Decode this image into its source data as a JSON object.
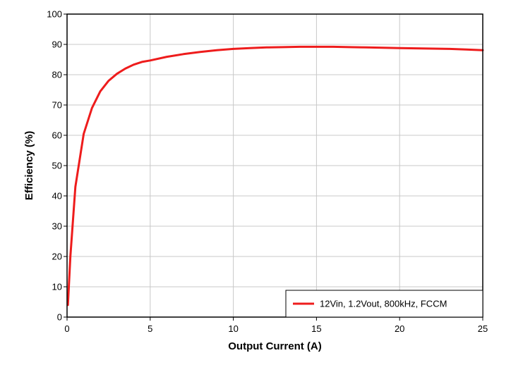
{
  "chart_data": {
    "type": "line",
    "title": "",
    "xlabel": "Output Current (A)",
    "ylabel": "Efficiency (%)",
    "xlim": [
      0,
      25
    ],
    "ylim": [
      0,
      100
    ],
    "xticks": [
      0,
      5,
      10,
      15,
      20,
      25
    ],
    "yticks": [
      0,
      10,
      20,
      30,
      40,
      50,
      60,
      70,
      80,
      90,
      100
    ],
    "xtick_labels": [
      "0",
      "5",
      "10",
      "15",
      "20",
      "25"
    ],
    "ytick_labels": [
      "0",
      "10",
      "20",
      "30",
      "40",
      "50",
      "60",
      "70",
      "80",
      "90",
      "100"
    ],
    "grid": true,
    "legend_position": "bottom-right",
    "series": [
      {
        "name": "12Vin, 1.2Vout, 800kHz, FCCM",
        "color": "#ee1c1c",
        "x": [
          0.05,
          0.2,
          0.5,
          1.0,
          1.5,
          2.0,
          2.5,
          3.0,
          3.5,
          4.0,
          4.5,
          5.0,
          6.0,
          7.0,
          8.0,
          9.0,
          10.0,
          11.0,
          12.0,
          13.0,
          14.0,
          15.0,
          16.0,
          17.0,
          18.0,
          19.0,
          20.0,
          21.0,
          22.0,
          23.0,
          24.0,
          25.0
        ],
        "y": [
          4,
          20,
          43,
          60.5,
          69,
          74.5,
          78,
          80.3,
          82,
          83.3,
          84.2,
          84.7,
          85.9,
          86.8,
          87.5,
          88.1,
          88.5,
          88.8,
          89.0,
          89.1,
          89.2,
          89.2,
          89.2,
          89.1,
          89.0,
          88.9,
          88.8,
          88.7,
          88.6,
          88.5,
          88.3,
          88.1
        ]
      }
    ]
  }
}
